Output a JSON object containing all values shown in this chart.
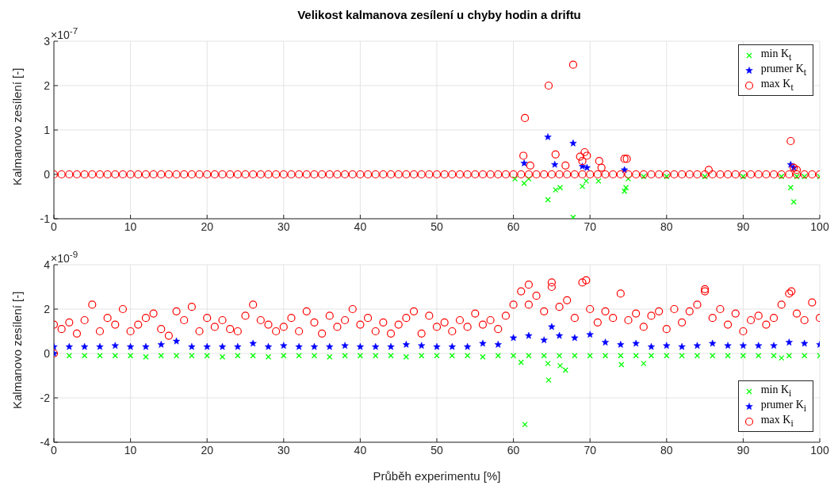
{
  "chart_data": [
    {
      "type": "scatter",
      "title": "Velikost kalmanova zesílení u chyby hodin a driftu",
      "ylabel": "Kalmanovo zesílení [-]",
      "annotations": [
        "×10$^{-7}$"
      ],
      "xlim": [
        0,
        100
      ],
      "xticks": [
        0,
        10,
        20,
        30,
        40,
        50,
        60,
        70,
        80,
        90,
        100
      ],
      "ylim": [
        -1,
        3
      ],
      "yticks": [
        -1,
        0,
        1,
        2,
        3
      ],
      "grid": true,
      "legend": "top right",
      "series": [
        {
          "name": "min K$_{t}$",
          "color": "#00ff00",
          "marker": "cross",
          "x": [
            60.2,
            61.4,
            62,
            64.5,
            65.5,
            66.1,
            67.8,
            69,
            69.5,
            71.1,
            74.5,
            74.7,
            75,
            77,
            80,
            85,
            90,
            95,
            96.2,
            96.6,
            97,
            98,
            100
          ],
          "values": [
            -0.1,
            -0.2,
            -0.1,
            -0.57,
            -0.35,
            -0.3,
            -0.97,
            -0.27,
            -0.15,
            -0.15,
            -0.38,
            -0.3,
            -0.1,
            -0.05,
            -0.05,
            -0.05,
            -0.05,
            -0.05,
            -0.3,
            -0.62,
            -0.05,
            -0.05,
            -0.05
          ]
        },
        {
          "name": "prumer K$_{t}$",
          "color": "#0000ff",
          "marker": "star",
          "x": [
            61.4,
            64.5,
            65.4,
            67.8,
            69,
            69.6,
            74.5,
            96.2,
            96.6
          ],
          "values": [
            0.25,
            0.84,
            0.22,
            0.7,
            0.18,
            0.15,
            0.1,
            0.22,
            0.15
          ]
        },
        {
          "name": "max K$_{t}$",
          "color": "#ff0000",
          "marker": "circle",
          "x": [
            0,
            1,
            2,
            3,
            4,
            5,
            6,
            7,
            8,
            9,
            10,
            11,
            12,
            13,
            14,
            15,
            16,
            17,
            18,
            19,
            20,
            21,
            22,
            23,
            24,
            25,
            26,
            27,
            28,
            29,
            30,
            31,
            32,
            33,
            34,
            35,
            36,
            37,
            38,
            39,
            40,
            41,
            42,
            43,
            44,
            45,
            46,
            47,
            48,
            49,
            50,
            51,
            52,
            53,
            54,
            55,
            56,
            57,
            58,
            59,
            60,
            61,
            62,
            63,
            64,
            65,
            66,
            67,
            68,
            69,
            70,
            71,
            72,
            73,
            74,
            75,
            76,
            77,
            78,
            79,
            80,
            81,
            82,
            83,
            84,
            85,
            86,
            87,
            88,
            89,
            90,
            91,
            92,
            93,
            94,
            95,
            96,
            97,
            98,
            99,
            100,
            61.3,
            61.5,
            62.2,
            64.6,
            65.5,
            66.8,
            67.8,
            68.7,
            69.0,
            69.3,
            69.6,
            71.2,
            71.5,
            74.5,
            74.8,
            85.5,
            96.2,
            96.6,
            97
          ],
          "values": [
            0,
            0,
            0,
            0,
            0,
            0,
            0,
            0,
            0,
            0,
            0,
            0,
            0,
            0,
            0,
            0,
            0,
            0,
            0,
            0,
            0,
            0,
            0,
            0,
            0,
            0,
            0,
            0,
            0,
            0,
            0,
            0,
            0,
            0,
            0,
            0,
            0,
            0,
            0,
            0,
            0,
            0,
            0,
            0,
            0,
            0,
            0,
            0,
            0,
            0,
            0,
            0,
            0,
            0,
            0,
            0,
            0,
            0,
            0,
            0,
            0,
            0,
            0,
            0,
            0,
            0,
            0,
            0,
            0,
            0,
            0,
            0,
            0,
            0,
            0,
            0,
            0,
            0,
            0,
            0,
            0,
            0,
            0,
            0,
            0,
            0,
            0,
            0,
            0,
            0,
            0,
            0,
            0,
            0,
            0,
            0,
            0,
            0,
            0,
            0,
            0,
            0.42,
            1.27,
            0.2,
            2.0,
            0.45,
            0.2,
            2.47,
            0.4,
            0.3,
            0.5,
            0.42,
            0.3,
            0.15,
            0.35,
            0.35,
            0.1,
            0.75,
            0.15,
            0.1
          ]
        }
      ]
    },
    {
      "type": "scatter",
      "xlabel": "Průběh experimentu [%]",
      "ylabel": "Kalmanovo zesílení [-]",
      "annotations": [
        "×10$^{-9}$"
      ],
      "xlim": [
        0,
        100
      ],
      "xticks": [
        0,
        10,
        20,
        30,
        40,
        50,
        60,
        70,
        80,
        90,
        100
      ],
      "ylim": [
        -4,
        4
      ],
      "yticks": [
        -4,
        -2,
        0,
        2,
        4
      ],
      "grid": true,
      "legend": "bottom right",
      "series": [
        {
          "name": "min K$_{i}$",
          "color": "#00ff00",
          "marker": "cross",
          "x": [
            2,
            4,
            6,
            8,
            10,
            12,
            14,
            16,
            18,
            20,
            22,
            24,
            26,
            28,
            30,
            32,
            34,
            36,
            38,
            40,
            42,
            44,
            46,
            48,
            50,
            52,
            54,
            56,
            58,
            60,
            62,
            64,
            66,
            68,
            70,
            72,
            74,
            76,
            78,
            80,
            82,
            84,
            86,
            88,
            90,
            92,
            94,
            96,
            98,
            100,
            61,
            61.5,
            64.5,
            64.6,
            66.1,
            66.8,
            74.1,
            77,
            95
          ],
          "values": [
            -0.1,
            -0.1,
            -0.1,
            -0.1,
            -0.1,
            -0.15,
            -0.1,
            -0.1,
            -0.1,
            -0.1,
            -0.15,
            -0.1,
            -0.1,
            -0.15,
            -0.1,
            -0.1,
            -0.1,
            -0.15,
            -0.1,
            -0.1,
            -0.1,
            -0.1,
            -0.15,
            -0.1,
            -0.1,
            -0.1,
            -0.1,
            -0.15,
            -0.1,
            -0.1,
            -0.1,
            -0.1,
            -0.1,
            -0.1,
            -0.1,
            -0.1,
            -0.1,
            -0.1,
            -0.1,
            -0.1,
            -0.1,
            -0.1,
            -0.1,
            -0.1,
            -0.1,
            -0.1,
            -0.1,
            -0.1,
            -0.1,
            -0.1,
            -0.4,
            -3.2,
            -0.45,
            -1.2,
            -0.55,
            -0.75,
            -0.5,
            -0.45,
            -0.2
          ]
        },
        {
          "name": "prumer K$_{i}$",
          "color": "#0000ff",
          "marker": "star",
          "x": [
            0,
            0,
            2,
            4,
            6,
            8,
            10,
            12,
            14,
            16,
            18,
            20,
            22,
            24,
            26,
            28,
            30,
            32,
            34,
            36,
            38,
            40,
            42,
            44,
            46,
            48,
            50,
            52,
            54,
            56,
            58,
            60,
            62,
            64,
            65,
            66,
            68,
            70,
            72,
            74,
            76,
            78,
            80,
            82,
            84,
            86,
            88,
            90,
            92,
            94,
            96,
            98,
            100
          ],
          "values": [
            0,
            0.3,
            0.3,
            0.3,
            0.3,
            0.35,
            0.3,
            0.3,
            0.4,
            0.55,
            0.3,
            0.3,
            0.3,
            0.3,
            0.45,
            0.3,
            0.35,
            0.3,
            0.3,
            0.3,
            0.35,
            0.3,
            0.3,
            0.3,
            0.4,
            0.35,
            0.3,
            0.3,
            0.3,
            0.45,
            0.4,
            0.7,
            0.8,
            0.6,
            1.2,
            0.8,
            0.7,
            0.85,
            0.5,
            0.4,
            0.45,
            0.3,
            0.35,
            0.3,
            0.35,
            0.45,
            0.35,
            0.35,
            0.35,
            0.35,
            0.5,
            0.45,
            0.4
          ]
        },
        {
          "name": "max K$_{i}$",
          "color": "#ff0000",
          "marker": "circle",
          "x": [
            0,
            0,
            1,
            2,
            3,
            4,
            5,
            6,
            7,
            8,
            9,
            10,
            11,
            12,
            13,
            14,
            15,
            16,
            17,
            18,
            19,
            20,
            21,
            22,
            23,
            24,
            25,
            26,
            27,
            28,
            29,
            30,
            31,
            32,
            33,
            34,
            35,
            36,
            37,
            38,
            39,
            40,
            41,
            42,
            43,
            44,
            45,
            46,
            47,
            48,
            49,
            50,
            51,
            52,
            53,
            54,
            55,
            56,
            57,
            58,
            59,
            60,
            61,
            62,
            63,
            64,
            65,
            66,
            67,
            68,
            69,
            70,
            71,
            72,
            73,
            74,
            75,
            76,
            77,
            78,
            79,
            80,
            81,
            82,
            83,
            84,
            85,
            86,
            87,
            88,
            89,
            90,
            91,
            92,
            93,
            94,
            95,
            96,
            97,
            98,
            99,
            100,
            62,
            65,
            69.5,
            85,
            96.3
          ],
          "values": [
            0,
            1.3,
            1.1,
            1.4,
            0.9,
            1.5,
            2.2,
            1.0,
            1.6,
            1.3,
            2.0,
            1.0,
            1.3,
            1.6,
            1.8,
            1.1,
            0.8,
            1.9,
            1.5,
            2.1,
            1.0,
            1.6,
            1.2,
            1.5,
            1.1,
            1.0,
            1.7,
            2.2,
            1.5,
            1.3,
            1.0,
            1.2,
            1.6,
            1.0,
            1.9,
            1.4,
            0.9,
            1.7,
            1.2,
            1.5,
            2.0,
            1.3,
            1.6,
            1.0,
            1.4,
            0.9,
            1.3,
            1.6,
            1.9,
            0.9,
            1.7,
            1.2,
            1.4,
            1.0,
            1.5,
            1.2,
            1.8,
            1.3,
            1.5,
            1.1,
            1.7,
            2.2,
            2.8,
            2.2,
            2.6,
            1.9,
            3.0,
            2.1,
            2.4,
            1.6,
            3.2,
            2.0,
            1.4,
            1.9,
            1.6,
            2.7,
            1.5,
            1.8,
            1.2,
            1.7,
            1.9,
            1.1,
            2.0,
            1.4,
            1.9,
            2.2,
            2.8,
            1.6,
            2.0,
            1.3,
            1.8,
            1.0,
            1.5,
            1.7,
            1.3,
            1.6,
            2.2,
            2.7,
            1.8,
            1.5,
            2.3,
            1.6,
            3.1,
            3.2,
            3.3,
            2.9,
            2.8
          ]
        }
      ]
    }
  ]
}
